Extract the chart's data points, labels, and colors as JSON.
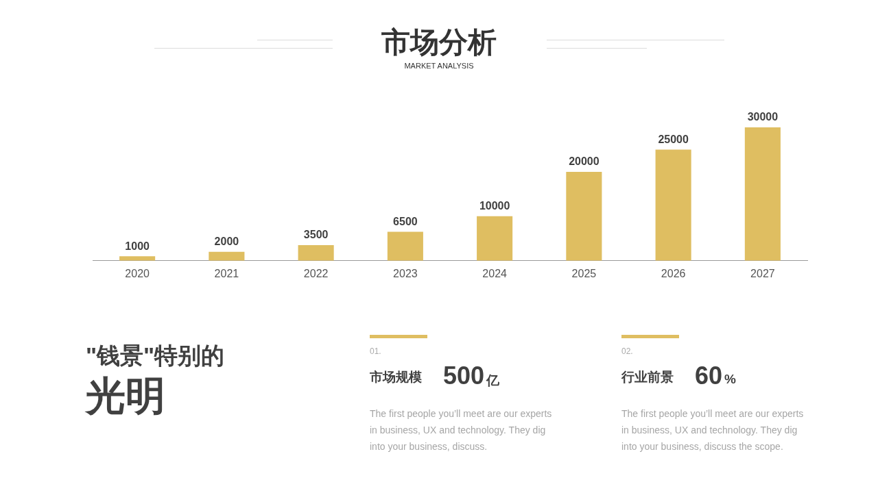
{
  "chart_data": {
    "type": "bar",
    "title": "市场分析",
    "subtitle": "MARKET ANALYSIS",
    "categories": [
      "2020",
      "2021",
      "2022",
      "2023",
      "2024",
      "2025",
      "2026",
      "2027"
    ],
    "values": [
      1000,
      2000,
      3500,
      6500,
      10000,
      20000,
      25000,
      30000
    ],
    "color": "#dfbe61",
    "data_labels": true,
    "grid": false,
    "legend": false,
    "tick_labels": "x",
    "annotations": [
      "\"钱景\"特别的",
      "光明",
      "01.",
      "市场规模",
      "500",
      "亿",
      "The first people you’ll meet are our experts in business, UX  and technology. They dig into your business, discuss.",
      "02.",
      "行业前景",
      "60",
      "%",
      "The first people you’ll meet are our experts in business, UX  and technology. They dig into your business, discuss the scope."
    ]
  }
}
